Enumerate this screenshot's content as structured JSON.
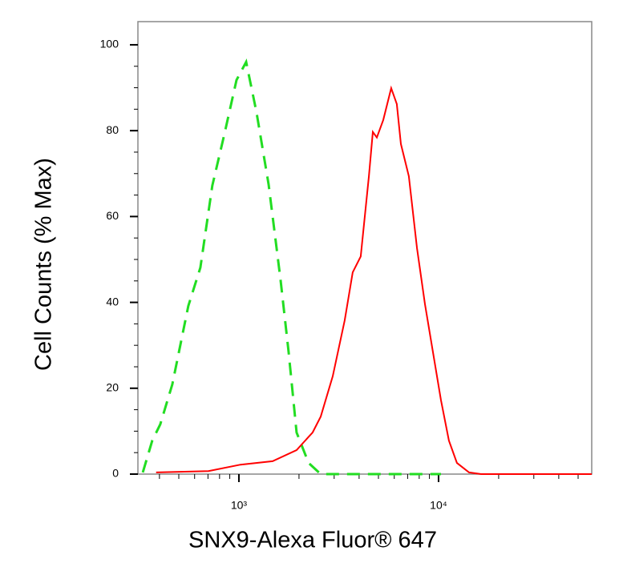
{
  "chart_data": {
    "type": "line",
    "xlabel": "SNX9-Alexa Fluor® 647",
    "ylabel": "Cell Counts (% Max)",
    "xscale": "log",
    "xlim": [
      312,
      58500
    ],
    "ylim": [
      0,
      105.4
    ],
    "xticks": [
      {
        "value": 1000,
        "label": "10³"
      },
      {
        "value": 10000,
        "label": "10⁴"
      }
    ],
    "xminorticks": [
      400,
      500,
      600,
      700,
      800,
      900,
      2000,
      3000,
      4000,
      5000,
      6000,
      7000,
      8000,
      9000,
      20000,
      30000,
      40000,
      50000
    ],
    "yticks": [
      0,
      20,
      40,
      60,
      80,
      100
    ],
    "yminorticks": [
      5,
      10,
      15,
      25,
      30,
      35,
      45,
      50,
      55,
      65,
      70,
      75,
      85,
      90,
      95
    ],
    "series": [
      {
        "color": "#22dd22",
        "linestyle": "dashed",
        "x": [
          330,
          368,
          404,
          464,
          558,
          641,
          736,
          847,
          973,
          1087,
          1225,
          1409,
          1618,
          1774,
          1945,
          2234,
          2570,
          10280
        ],
        "values": [
          0.4,
          7.8,
          11.6,
          20.9,
          39.2,
          48.1,
          67.2,
          79.3,
          91.8,
          96,
          84.3,
          67.5,
          45.1,
          28.4,
          9.7,
          2.6,
          0,
          0
        ]
      },
      {
        "color": "#ff0000",
        "linestyle": "solid",
        "x": [
          385,
          704,
          1019,
          1475,
          1945,
          2340,
          2570,
          2951,
          3388,
          3715,
          4074,
          4477,
          4688,
          4909,
          5284,
          5794,
          6180,
          6475,
          7100,
          7798,
          8551,
          9376,
          10280,
          11270,
          12360,
          14220,
          16330,
          58500
        ],
        "values": [
          0.4,
          0.7,
          2.2,
          3.0,
          5.6,
          9.7,
          13.4,
          22.8,
          35.8,
          47.0,
          50.7,
          69.4,
          79.7,
          78.4,
          82.5,
          89.9,
          86.2,
          76.9,
          69.4,
          52.6,
          39.6,
          28.4,
          17.2,
          7.8,
          2.6,
          0.4,
          0,
          0
        ]
      }
    ]
  }
}
